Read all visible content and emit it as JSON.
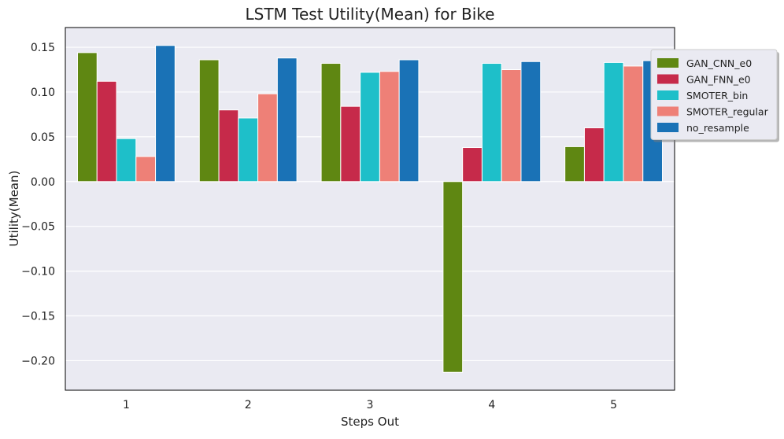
{
  "chart_data": {
    "type": "bar",
    "title": "LSTM Test Utility(Mean) for Bike",
    "xlabel": "Steps Out",
    "ylabel": "Utility(Mean)",
    "categories": [
      "1",
      "2",
      "3",
      "4",
      "5"
    ],
    "ylim": [
      -0.233,
      0.172
    ],
    "yticks": [
      0.15,
      0.1,
      0.05,
      0.0,
      -0.05,
      -0.1,
      -0.15,
      -0.2
    ],
    "ytick_labels": [
      "0.15",
      "0.10",
      "0.05",
      "0.00",
      "−0.05",
      "−0.10",
      "−0.15",
      "−0.20"
    ],
    "grid": true,
    "legend_position": "top-right",
    "series": [
      {
        "name": "GAN_CNN_e0",
        "color": "#5f8712",
        "values": [
          0.144,
          0.136,
          0.132,
          -0.213,
          0.039
        ]
      },
      {
        "name": "GAN_FNN_e0",
        "color": "#c62a4a",
        "values": [
          0.112,
          0.08,
          0.084,
          0.038,
          0.06
        ]
      },
      {
        "name": "SMOTER_bin",
        "color": "#1ebfc9",
        "values": [
          0.048,
          0.071,
          0.122,
          0.132,
          0.133
        ]
      },
      {
        "name": "SMOTER_regular",
        "color": "#ee8077",
        "values": [
          0.028,
          0.098,
          0.123,
          0.125,
          0.129
        ]
      },
      {
        "name": "no_resample",
        "color": "#1a72b6",
        "values": [
          0.152,
          0.138,
          0.136,
          0.134,
          0.135
        ]
      }
    ]
  }
}
